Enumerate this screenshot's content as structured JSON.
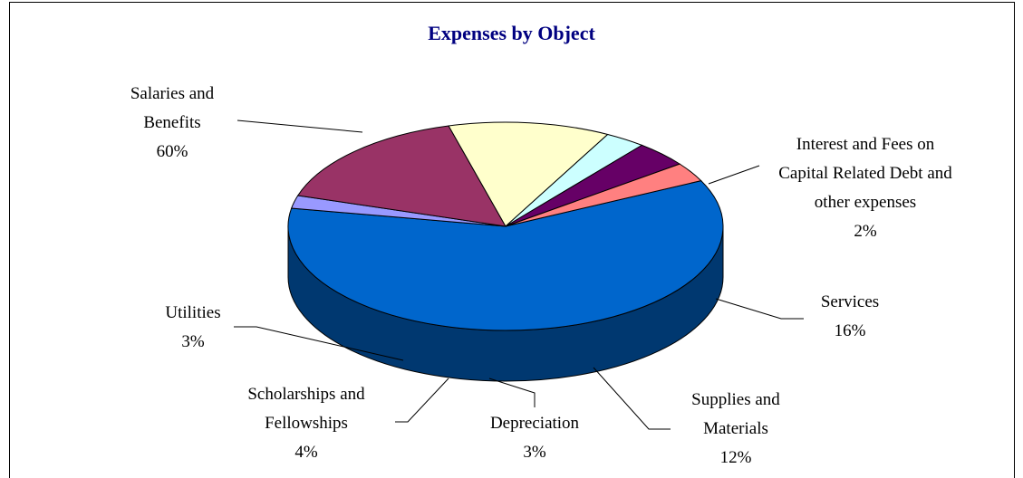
{
  "chart_data": {
    "type": "pie",
    "title": "Expenses by Object",
    "categories": [
      "Salaries and Benefits",
      "Interest and Fees on Capital Related Debt and other expenses",
      "Services",
      "Supplies and Materials",
      "Depreciation",
      "Scholarships and Fellowships",
      "Utilities"
    ],
    "values": [
      60,
      2,
      16,
      12,
      3,
      4,
      3
    ],
    "value_labels": [
      "60%",
      "2%",
      "16%",
      "12%",
      "3%",
      "4%",
      "3%"
    ],
    "colors": [
      "#0066cc",
      "#9999ff",
      "#993366",
      "#ffffcc",
      "#ccffff",
      "#660066",
      "#ff8080"
    ]
  }
}
